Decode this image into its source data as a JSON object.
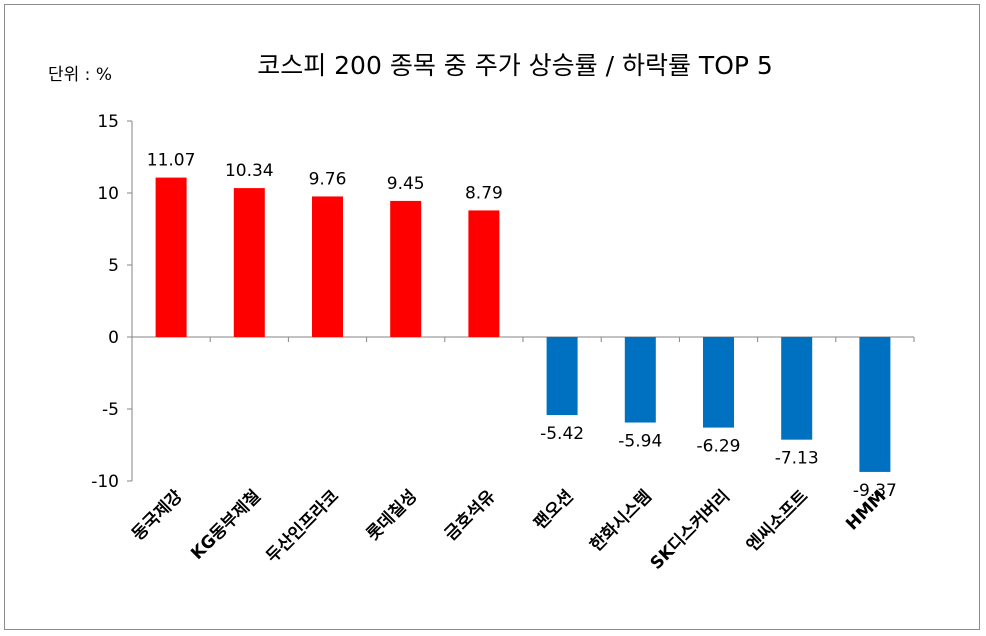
{
  "chart_data": {
    "type": "bar",
    "title": "코스피 200 종목 중  주가 상승률 / 하락률 TOP 5",
    "unit_label": "단위 : %",
    "categories": [
      "동국제강",
      "KG동부제철",
      "두산인프라코",
      "롯데칠성",
      "금호석유",
      "팬오션",
      "한화시스템",
      "SK디스커버리",
      "엔씨소프트",
      "HMM"
    ],
    "values": [
      11.07,
      10.34,
      9.76,
      9.45,
      8.79,
      -5.42,
      -5.94,
      -6.29,
      -7.13,
      -9.37
    ],
    "data_labels": [
      "11.07",
      "10.34",
      "9.76",
      "9.45",
      "8.79",
      "-5.42",
      "-5.94",
      "-6.29",
      "-7.13",
      "-9.37"
    ],
    "ylim": [
      -10,
      15
    ],
    "yticks": [
      15,
      10,
      5,
      0,
      -5,
      -10
    ],
    "ytick_labels": [
      "15",
      "10",
      "5",
      "0",
      "-5",
      "-10"
    ],
    "xlabel": "",
    "ylabel": "",
    "grid": false,
    "legend": "none",
    "colors": {
      "positive": "#ff0000",
      "negative": "#0070c0",
      "axis": "#868686"
    }
  }
}
